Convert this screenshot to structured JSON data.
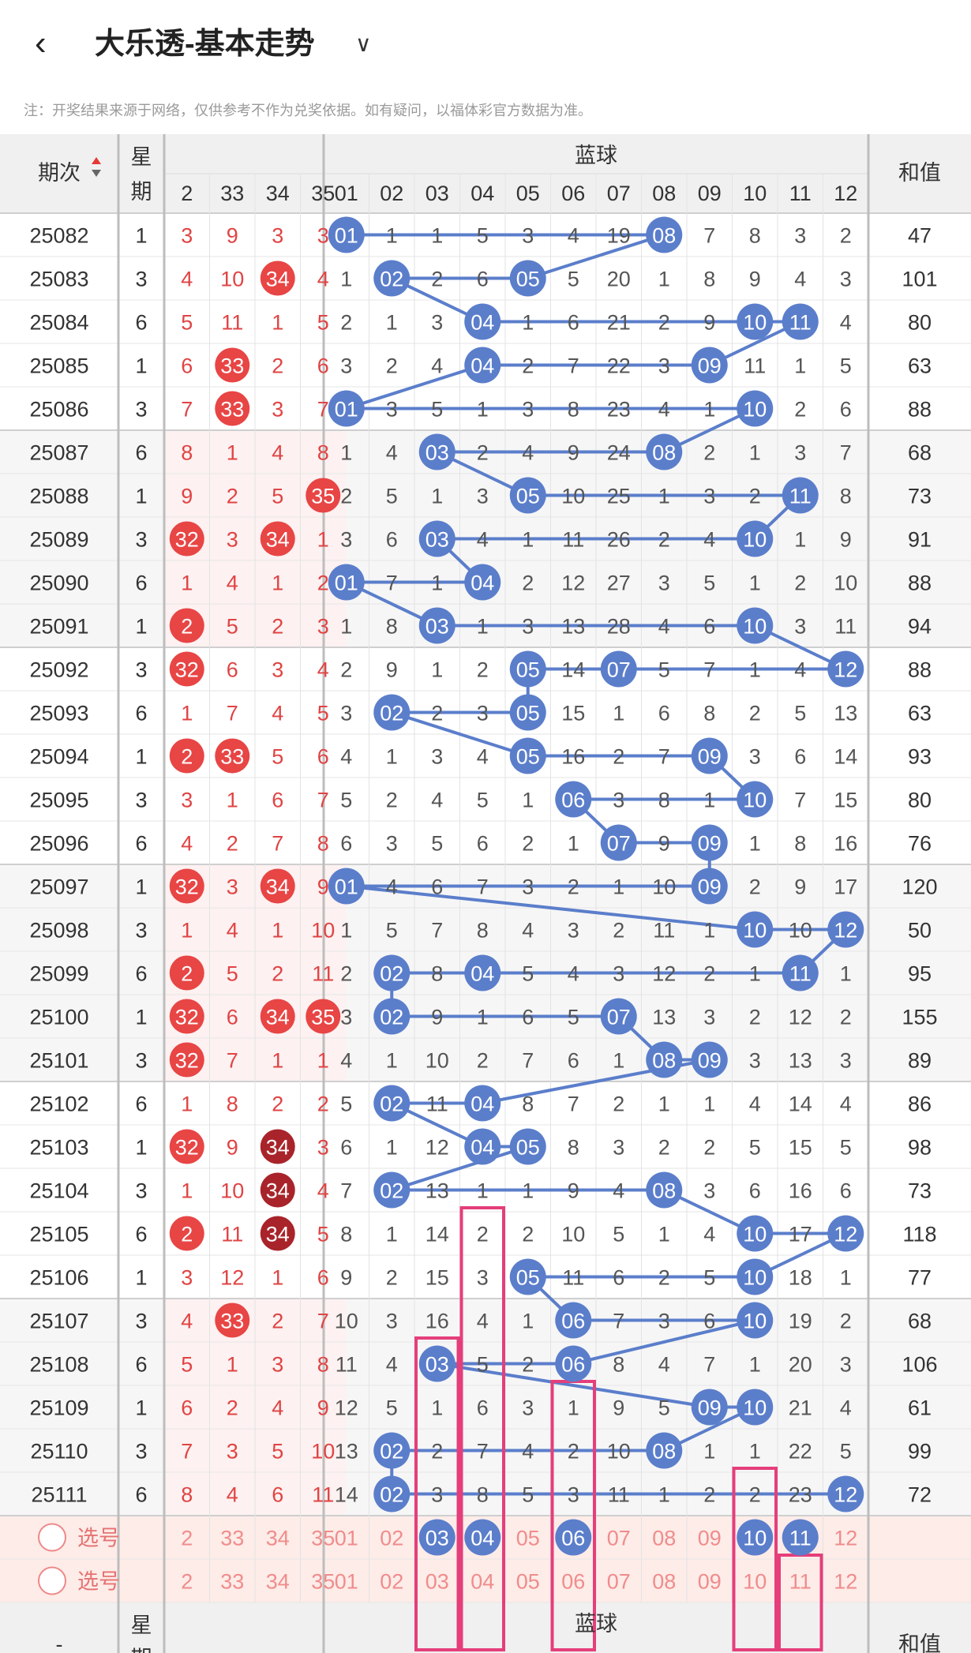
{
  "header": {
    "back_icon": "chevron-left-icon",
    "title": "大乐透-基本走势",
    "dropdown_icon": "chevron-down-icon"
  },
  "note": "注：开奖结果来源于网络，仅供参考不作为兑奖依据。如有疑问，以福体彩官方数据为准。",
  "table": {
    "period_header": "期次",
    "weekday_header": "星期",
    "blue_group_header": "蓝球",
    "sum_header": "和值",
    "red_columns": [
      "2",
      "33",
      "34",
      "35"
    ],
    "blue_columns": [
      "01",
      "02",
      "03",
      "04",
      "05",
      "06",
      "07",
      "08",
      "09",
      "10",
      "11",
      "12"
    ],
    "rows": [
      {
        "period": "25082",
        "week": "1",
        "red": [
          "3",
          "9",
          "3",
          "3"
        ],
        "blue": [
          "01",
          "1",
          "1",
          "5",
          "3",
          "4",
          "19",
          "08",
          "7",
          "8",
          "3",
          "2"
        ],
        "sum": "47"
      },
      {
        "period": "25083",
        "week": "3",
        "red": [
          "4",
          "10",
          "34",
          "4"
        ],
        "blue": [
          "1",
          "02",
          "2",
          "6",
          "05",
          "5",
          "20",
          "1",
          "8",
          "9",
          "4",
          "3"
        ],
        "sum": "101"
      },
      {
        "period": "25084",
        "week": "6",
        "red": [
          "5",
          "11",
          "1",
          "5"
        ],
        "blue": [
          "2",
          "1",
          "3",
          "04",
          "1",
          "6",
          "21",
          "2",
          "9",
          "10",
          "11",
          "4"
        ],
        "sum": "80"
      },
      {
        "period": "25085",
        "week": "1",
        "red": [
          "6",
          "33",
          "2",
          "6"
        ],
        "blue": [
          "3",
          "2",
          "4",
          "04",
          "2",
          "7",
          "22",
          "3",
          "09",
          "11",
          "1",
          "5"
        ],
        "sum": "63"
      },
      {
        "period": "25086",
        "week": "3",
        "red": [
          "7",
          "33",
          "3",
          "7"
        ],
        "blue": [
          "01",
          "3",
          "5",
          "1",
          "3",
          "8",
          "23",
          "4",
          "1",
          "10",
          "2",
          "6"
        ],
        "sum": "88"
      },
      {
        "period": "25087",
        "week": "6",
        "red": [
          "8",
          "1",
          "4",
          "8"
        ],
        "blue": [
          "1",
          "4",
          "03",
          "2",
          "4",
          "9",
          "24",
          "08",
          "2",
          "1",
          "3",
          "7"
        ],
        "sum": "68"
      },
      {
        "period": "25088",
        "week": "1",
        "red": [
          "9",
          "2",
          "5",
          "35"
        ],
        "blue": [
          "2",
          "5",
          "1",
          "3",
          "05",
          "10",
          "25",
          "1",
          "3",
          "2",
          "11",
          "8"
        ],
        "sum": "73"
      },
      {
        "period": "25089",
        "week": "3",
        "red": [
          "32",
          "3",
          "34",
          "1"
        ],
        "blue": [
          "3",
          "6",
          "03",
          "4",
          "1",
          "11",
          "26",
          "2",
          "4",
          "10",
          "1",
          "9"
        ],
        "sum": "91"
      },
      {
        "period": "25090",
        "week": "6",
        "red": [
          "1",
          "4",
          "1",
          "2"
        ],
        "blue": [
          "01",
          "7",
          "1",
          "04",
          "2",
          "12",
          "27",
          "3",
          "5",
          "1",
          "2",
          "10"
        ],
        "sum": "88"
      },
      {
        "period": "25091",
        "week": "1",
        "red": [
          "2",
          "5",
          "2",
          "3"
        ],
        "blue": [
          "1",
          "8",
          "03",
          "1",
          "3",
          "13",
          "28",
          "4",
          "6",
          "10",
          "3",
          "11"
        ],
        "sum": "94"
      },
      {
        "period": "25092",
        "week": "3",
        "red": [
          "32",
          "6",
          "3",
          "4"
        ],
        "blue": [
          "2",
          "9",
          "1",
          "2",
          "05",
          "14",
          "07",
          "5",
          "7",
          "1",
          "4",
          "12"
        ],
        "sum": "88"
      },
      {
        "period": "25093",
        "week": "6",
        "red": [
          "1",
          "7",
          "4",
          "5"
        ],
        "blue": [
          "3",
          "02",
          "2",
          "3",
          "05",
          "15",
          "1",
          "6",
          "8",
          "2",
          "5",
          "13"
        ],
        "sum": "63"
      },
      {
        "period": "25094",
        "week": "1",
        "red": [
          "2",
          "33",
          "5",
          "6"
        ],
        "blue": [
          "4",
          "1",
          "3",
          "4",
          "05",
          "16",
          "2",
          "7",
          "09",
          "3",
          "6",
          "14"
        ],
        "sum": "93"
      },
      {
        "period": "25095",
        "week": "3",
        "red": [
          "3",
          "1",
          "6",
          "7"
        ],
        "blue": [
          "5",
          "2",
          "4",
          "5",
          "1",
          "06",
          "3",
          "8",
          "1",
          "10",
          "7",
          "15"
        ],
        "sum": "80"
      },
      {
        "period": "25096",
        "week": "6",
        "red": [
          "4",
          "2",
          "7",
          "8"
        ],
        "blue": [
          "6",
          "3",
          "5",
          "6",
          "2",
          "1",
          "07",
          "9",
          "09",
          "1",
          "8",
          "16"
        ],
        "sum": "76"
      },
      {
        "period": "25097",
        "week": "1",
        "red": [
          "32",
          "3",
          "34",
          "9"
        ],
        "blue": [
          "01",
          "4",
          "6",
          "7",
          "3",
          "2",
          "1",
          "10",
          "09",
          "2",
          "9",
          "17"
        ],
        "sum": "120"
      },
      {
        "period": "25098",
        "week": "3",
        "red": [
          "1",
          "4",
          "1",
          "10"
        ],
        "blue": [
          "1",
          "5",
          "7",
          "8",
          "4",
          "3",
          "2",
          "11",
          "1",
          "10",
          "10",
          "12"
        ],
        "sum": "50"
      },
      {
        "period": "25099",
        "week": "6",
        "red": [
          "2",
          "5",
          "2",
          "11"
        ],
        "blue": [
          "2",
          "02",
          "8",
          "04",
          "5",
          "4",
          "3",
          "12",
          "2",
          "1",
          "11",
          "1"
        ],
        "sum": "95"
      },
      {
        "period": "25100",
        "week": "1",
        "red": [
          "32",
          "6",
          "34",
          "35"
        ],
        "blue": [
          "3",
          "02",
          "9",
          "1",
          "6",
          "5",
          "07",
          "13",
          "3",
          "2",
          "12",
          "2"
        ],
        "sum": "155"
      },
      {
        "period": "25101",
        "week": "3",
        "red": [
          "32",
          "7",
          "1",
          "1"
        ],
        "blue": [
          "4",
          "1",
          "10",
          "2",
          "7",
          "6",
          "1",
          "08",
          "09",
          "3",
          "13",
          "3"
        ],
        "sum": "89"
      },
      {
        "period": "25102",
        "week": "6",
        "red": [
          "1",
          "8",
          "2",
          "2"
        ],
        "blue": [
          "5",
          "02",
          "11",
          "04",
          "8",
          "7",
          "2",
          "1",
          "1",
          "4",
          "14",
          "4"
        ],
        "sum": "86"
      },
      {
        "period": "25103",
        "week": "1",
        "red": [
          "32",
          "9",
          "34",
          "3"
        ],
        "blue": [
          "6",
          "1",
          "12",
          "04",
          "05",
          "8",
          "3",
          "2",
          "2",
          "5",
          "15",
          "5"
        ],
        "sum": "98"
      },
      {
        "period": "25104",
        "week": "3",
        "red": [
          "1",
          "10",
          "34",
          "4"
        ],
        "blue": [
          "7",
          "02",
          "13",
          "1",
          "1",
          "9",
          "4",
          "08",
          "3",
          "6",
          "16",
          "6"
        ],
        "sum": "73"
      },
      {
        "period": "25105",
        "week": "6",
        "red": [
          "2",
          "11",
          "34",
          "5"
        ],
        "blue": [
          "8",
          "1",
          "14",
          "2",
          "2",
          "10",
          "5",
          "1",
          "4",
          "10",
          "17",
          "12"
        ],
        "sum": "118"
      },
      {
        "period": "25106",
        "week": "1",
        "red": [
          "3",
          "12",
          "1",
          "6"
        ],
        "blue": [
          "9",
          "2",
          "15",
          "3",
          "05",
          "11",
          "6",
          "2",
          "5",
          "10",
          "18",
          "1"
        ],
        "sum": "77"
      },
      {
        "period": "25107",
        "week": "3",
        "red": [
          "4",
          "33",
          "2",
          "7"
        ],
        "blue": [
          "10",
          "3",
          "16",
          "4",
          "1",
          "06",
          "7",
          "3",
          "6",
          "10",
          "19",
          "2"
        ],
        "sum": "68"
      },
      {
        "period": "25108",
        "week": "6",
        "red": [
          "5",
          "1",
          "3",
          "8"
        ],
        "blue": [
          "11",
          "4",
          "03",
          "5",
          "2",
          "06",
          "8",
          "4",
          "7",
          "1",
          "20",
          "3"
        ],
        "sum": "106"
      },
      {
        "period": "25109",
        "week": "1",
        "red": [
          "6",
          "2",
          "4",
          "9"
        ],
        "blue": [
          "12",
          "5",
          "1",
          "6",
          "3",
          "1",
          "9",
          "5",
          "09",
          "10",
          "21",
          "4"
        ],
        "sum": "61"
      },
      {
        "period": "25110",
        "week": "3",
        "red": [
          "7",
          "3",
          "5",
          "10"
        ],
        "blue": [
          "13",
          "02",
          "2",
          "7",
          "4",
          "2",
          "10",
          "08",
          "1",
          "1",
          "22",
          "5"
        ],
        "sum": "99"
      },
      {
        "period": "25111",
        "week": "6",
        "red": [
          "8",
          "4",
          "6",
          "11"
        ],
        "blue": [
          "14",
          "02",
          "3",
          "8",
          "5",
          "3",
          "11",
          "1",
          "2",
          "2",
          "23",
          "12"
        ],
        "sum": "72"
      }
    ],
    "select_label": "选号",
    "select_rows": [
      {
        "red": [
          "2",
          "33",
          "34",
          "35"
        ],
        "blue": [
          "01",
          "02",
          "03",
          "04",
          "05",
          "06",
          "07",
          "08",
          "09",
          "10",
          "11",
          "12"
        ]
      },
      {
        "red": [
          "2",
          "33",
          "34",
          "35"
        ],
        "blue": [
          "01",
          "02",
          "03",
          "04",
          "05",
          "06",
          "07",
          "08",
          "09",
          "10",
          "11",
          "12"
        ]
      }
    ],
    "footer_dash": "-",
    "colors": {
      "blue_ball": "#5B7ECB",
      "red_ball": "#E84545",
      "dark_red_ball": "#A8242A",
      "highlight_box": "#E53E7A",
      "red_text": "#E04444"
    }
  }
}
